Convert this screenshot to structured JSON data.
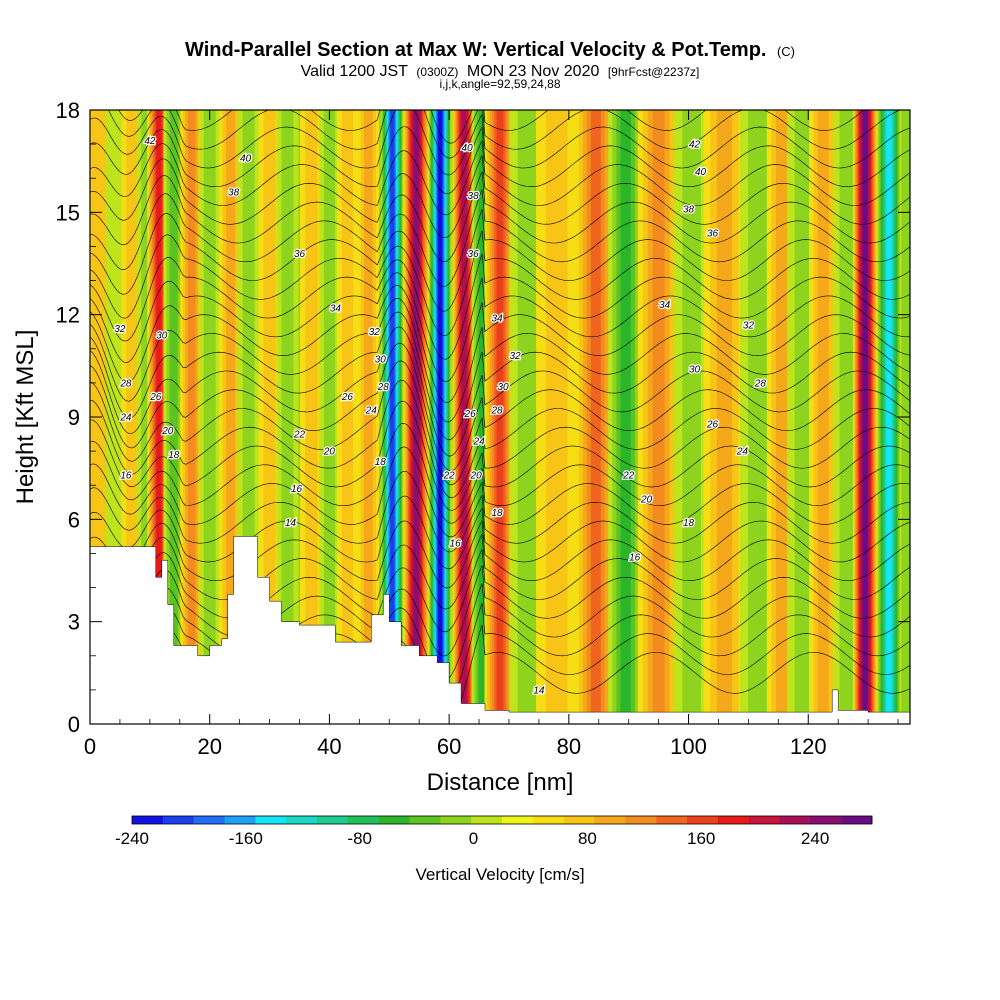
{
  "title": {
    "main": "Wind-Parallel Section at Max W: Vertical Velocity & Pot.Temp.",
    "copyright": "(C)",
    "valid_prefix": "Valid 1200 JST",
    "valid_utc": "(0300Z)",
    "valid_date": "MON 23 Nov 2020",
    "forecast": "[9hrFcst@2237z]",
    "indices": "i,j,k,angle=92,59,24,88"
  },
  "chart_data": {
    "type": "heatmap",
    "xlabel": "Distance [nm]",
    "ylabel": "Height [Kft MSL]",
    "xlim": [
      0,
      137
    ],
    "ylim": [
      0,
      18
    ],
    "x_ticks": [
      0,
      20,
      40,
      60,
      80,
      100,
      120
    ],
    "y_ticks": [
      0,
      3,
      6,
      9,
      12,
      15,
      18
    ],
    "colorbar": {
      "label": "Vertical Velocity [cm/s]",
      "range": [
        -240,
        280
      ],
      "step": 20,
      "tick_values": [
        -240,
        -160,
        -80,
        0,
        80,
        160,
        240
      ],
      "tick_labels": [
        "-240",
        "-160",
        "-80",
        "0",
        "80",
        "160",
        "240"
      ],
      "colors": [
        "#1010e0",
        "#1a3ef0",
        "#1e6ef8",
        "#1ea0f8",
        "#14e6f5",
        "#19d9c4",
        "#1fcc90",
        "#22c05a",
        "#2bb52b",
        "#5cc421",
        "#8ed41e",
        "#c0e41c",
        "#eef318",
        "#f5df14",
        "#f8c516",
        "#f5a81a",
        "#f48b1f",
        "#f0651e",
        "#ec3f1c",
        "#e81919",
        "#c8133a",
        "#a80f56",
        "#8a0d70",
        "#6a0b86"
      ]
    },
    "vertical_velocity_bands": [
      {
        "x": 1.5,
        "w": 2.0,
        "v": 40
      },
      {
        "x": 4.5,
        "w": 1.5,
        "v": -20
      },
      {
        "x": 7.0,
        "w": 1.4,
        "v": 40
      },
      {
        "x": 9.5,
        "w": 1.4,
        "v": -40
      },
      {
        "x": 11.5,
        "w": 1.6,
        "v": 140
      },
      {
        "x": 14.0,
        "w": 1.4,
        "v": -60
      },
      {
        "x": 17.0,
        "w": 1.6,
        "v": 80
      },
      {
        "x": 20.0,
        "w": 1.5,
        "v": -40
      },
      {
        "x": 23.5,
        "w": 1.6,
        "v": 60
      },
      {
        "x": 26.5,
        "w": 1.5,
        "v": -40
      },
      {
        "x": 30.0,
        "w": 1.5,
        "v": 40
      },
      {
        "x": 33.0,
        "w": 1.5,
        "v": -40
      },
      {
        "x": 37.0,
        "w": 1.6,
        "v": 40
      },
      {
        "x": 40.0,
        "w": 1.4,
        "v": -40
      },
      {
        "x": 43.0,
        "w": 1.4,
        "v": 40
      },
      {
        "x": 46.5,
        "w": 1.5,
        "v": 60
      },
      {
        "x": 50.5,
        "w": 1.6,
        "v": -220
      },
      {
        "x": 54.5,
        "w": 1.8,
        "v": 200
      },
      {
        "x": 58.5,
        "w": 1.6,
        "v": -240
      },
      {
        "x": 62.5,
        "w": 1.6,
        "v": 180
      },
      {
        "x": 65.5,
        "w": 1.4,
        "v": -80
      },
      {
        "x": 68.5,
        "w": 2.2,
        "v": 120
      },
      {
        "x": 73.0,
        "w": 2.5,
        "v": -40
      },
      {
        "x": 78.0,
        "w": 3.0,
        "v": 40
      },
      {
        "x": 84.5,
        "w": 3.0,
        "v": 100
      },
      {
        "x": 89.5,
        "w": 2.5,
        "v": -80
      },
      {
        "x": 95.0,
        "w": 3.0,
        "v": 80
      },
      {
        "x": 100.5,
        "w": 2.5,
        "v": -40
      },
      {
        "x": 106.0,
        "w": 3.0,
        "v": 60
      },
      {
        "x": 111.5,
        "w": 2.5,
        "v": -40
      },
      {
        "x": 115.5,
        "w": 2.0,
        "v": 60
      },
      {
        "x": 119.0,
        "w": 2.0,
        "v": -40
      },
      {
        "x": 122.5,
        "w": 2.0,
        "v": 60
      },
      {
        "x": 126.5,
        "w": 2.0,
        "v": -40
      },
      {
        "x": 129.5,
        "w": 1.7,
        "v": 220
      },
      {
        "x": 133.5,
        "w": 1.7,
        "v": -160
      }
    ],
    "terrain_profile": [
      [
        0,
        5.2
      ],
      [
        10,
        5.2
      ],
      [
        11,
        4.3
      ],
      [
        12,
        4.8
      ],
      [
        13,
        3.5
      ],
      [
        14,
        2.3
      ],
      [
        17,
        2.3
      ],
      [
        18,
        2.0
      ],
      [
        20,
        2.3
      ],
      [
        22,
        2.5
      ],
      [
        23,
        3.8
      ],
      [
        24,
        5.5
      ],
      [
        27,
        5.5
      ],
      [
        28,
        4.3
      ],
      [
        30,
        3.6
      ],
      [
        32,
        3.0
      ],
      [
        35,
        2.9
      ],
      [
        39,
        2.9
      ],
      [
        41,
        2.4
      ],
      [
        45,
        2.4
      ],
      [
        47,
        3.2
      ],
      [
        49,
        3.8
      ],
      [
        50,
        3.0
      ],
      [
        52,
        2.3
      ],
      [
        55,
        2.0
      ],
      [
        58,
        1.8
      ],
      [
        60,
        1.2
      ],
      [
        62,
        0.6
      ],
      [
        66,
        0.4
      ],
      [
        70,
        0.35
      ],
      [
        100,
        0.35
      ],
      [
        123,
        0.35
      ],
      [
        124,
        1.0
      ],
      [
        125,
        0.4
      ],
      [
        130,
        0.35
      ],
      [
        137,
        0.35
      ]
    ],
    "theta_contour_labels": [
      {
        "x": 10,
        "y": 17.1,
        "text": "42"
      },
      {
        "x": 26,
        "y": 16.6,
        "text": "40"
      },
      {
        "x": 24,
        "y": 15.6,
        "text": "38"
      },
      {
        "x": 35,
        "y": 13.8,
        "text": "36"
      },
      {
        "x": 41,
        "y": 12.2,
        "text": "34"
      },
      {
        "x": 5,
        "y": 11.6,
        "text": "32"
      },
      {
        "x": 12,
        "y": 11.4,
        "text": "30"
      },
      {
        "x": 6,
        "y": 10.0,
        "text": "28"
      },
      {
        "x": 11,
        "y": 9.6,
        "text": "26"
      },
      {
        "x": 6,
        "y": 9.0,
        "text": "24"
      },
      {
        "x": 13,
        "y": 8.6,
        "text": "20"
      },
      {
        "x": 14,
        "y": 7.9,
        "text": "18"
      },
      {
        "x": 6,
        "y": 7.3,
        "text": "16"
      },
      {
        "x": 35,
        "y": 8.5,
        "text": "22"
      },
      {
        "x": 40,
        "y": 8.0,
        "text": "20"
      },
      {
        "x": 43,
        "y": 9.6,
        "text": "26"
      },
      {
        "x": 47,
        "y": 9.2,
        "text": "24"
      },
      {
        "x": 47.5,
        "y": 11.5,
        "text": "32"
      },
      {
        "x": 48.5,
        "y": 10.7,
        "text": "30"
      },
      {
        "x": 49,
        "y": 9.9,
        "text": "28"
      },
      {
        "x": 48.5,
        "y": 7.7,
        "text": "18"
      },
      {
        "x": 34.5,
        "y": 6.9,
        "text": "16"
      },
      {
        "x": 33.5,
        "y": 5.9,
        "text": "14"
      },
      {
        "x": 63,
        "y": 16.9,
        "text": "40"
      },
      {
        "x": 64,
        "y": 15.5,
        "text": "38"
      },
      {
        "x": 64,
        "y": 13.8,
        "text": "36"
      },
      {
        "x": 68,
        "y": 11.9,
        "text": "34"
      },
      {
        "x": 71,
        "y": 10.8,
        "text": "32"
      },
      {
        "x": 69,
        "y": 9.9,
        "text": "30"
      },
      {
        "x": 68,
        "y": 9.2,
        "text": "28"
      },
      {
        "x": 63.5,
        "y": 9.1,
        "text": "26"
      },
      {
        "x": 65,
        "y": 8.3,
        "text": "24"
      },
      {
        "x": 60,
        "y": 7.3,
        "text": "22"
      },
      {
        "x": 64.5,
        "y": 7.3,
        "text": "20"
      },
      {
        "x": 68,
        "y": 6.2,
        "text": "18"
      },
      {
        "x": 61,
        "y": 5.3,
        "text": "16"
      },
      {
        "x": 75,
        "y": 1.0,
        "text": "14"
      },
      {
        "x": 101,
        "y": 17.0,
        "text": "42"
      },
      {
        "x": 102,
        "y": 16.2,
        "text": "40"
      },
      {
        "x": 100,
        "y": 15.1,
        "text": "38"
      },
      {
        "x": 104,
        "y": 14.4,
        "text": "36"
      },
      {
        "x": 96,
        "y": 12.3,
        "text": "34"
      },
      {
        "x": 110,
        "y": 11.7,
        "text": "32"
      },
      {
        "x": 101,
        "y": 10.4,
        "text": "30"
      },
      {
        "x": 112,
        "y": 10.0,
        "text": "28"
      },
      {
        "x": 104,
        "y": 8.8,
        "text": "26"
      },
      {
        "x": 109,
        "y": 8.0,
        "text": "24"
      },
      {
        "x": 90,
        "y": 7.3,
        "text": "22"
      },
      {
        "x": 93,
        "y": 6.6,
        "text": "20"
      },
      {
        "x": 100,
        "y": 5.9,
        "text": "18"
      },
      {
        "x": 91,
        "y": 4.9,
        "text": "16"
      }
    ]
  }
}
